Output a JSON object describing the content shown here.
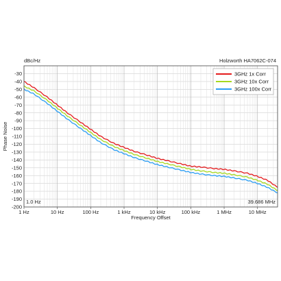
{
  "chart_data": {
    "type": "line",
    "title": "Holzworth HA7062C-074",
    "xlabel": "Frequency Offset",
    "ylabel": "Phase Noise",
    "y_unit": "dBc/Hz",
    "x_scale": "log",
    "xlim": [
      1,
      40000000
    ],
    "ylim": [
      -200,
      -20
    ],
    "x_ticks": [
      {
        "value": 1,
        "label": "1 Hz"
      },
      {
        "value": 10,
        "label": "10 Hz"
      },
      {
        "value": 100,
        "label": "100 Hz"
      },
      {
        "value": 1000,
        "label": "1 kHz"
      },
      {
        "value": 10000,
        "label": "10 kHz"
      },
      {
        "value": 100000,
        "label": "100 kHz"
      },
      {
        "value": 1000000,
        "label": "1 MHz"
      },
      {
        "value": 10000000,
        "label": "10 MHz"
      }
    ],
    "y_ticks": [
      -30,
      -40,
      -50,
      -60,
      -70,
      -80,
      -90,
      -100,
      -110,
      -120,
      -130,
      -140,
      -150,
      -160,
      -170,
      -180,
      -190,
      -200
    ],
    "grid": true,
    "legend_position": "top-right",
    "start_marker": "1.0 Hz",
    "stop_marker": "39.686 MHz",
    "series": [
      {
        "name": "3GHz 1x Corr",
        "color": "#e41a1c",
        "points": [
          [
            1,
            -40
          ],
          [
            2,
            -48
          ],
          [
            5,
            -60
          ],
          [
            10,
            -70
          ],
          [
            20,
            -80
          ],
          [
            50,
            -92
          ],
          [
            100,
            -101
          ],
          [
            200,
            -110
          ],
          [
            500,
            -119
          ],
          [
            1000,
            -124
          ],
          [
            2000,
            -129
          ],
          [
            5000,
            -134
          ],
          [
            10000,
            -138
          ],
          [
            20000,
            -141
          ],
          [
            50000,
            -145
          ],
          [
            100000,
            -148
          ],
          [
            200000,
            -149
          ],
          [
            500000,
            -151
          ],
          [
            1000000,
            -152
          ],
          [
            2000000,
            -154
          ],
          [
            5000000,
            -157
          ],
          [
            10000000,
            -161
          ],
          [
            20000000,
            -166
          ],
          [
            40000000,
            -175
          ]
        ]
      },
      {
        "name": "3GHz 10x Corr",
        "color": "#a6d81e",
        "points": [
          [
            1,
            -46
          ],
          [
            2,
            -52
          ],
          [
            5,
            -64
          ],
          [
            10,
            -74
          ],
          [
            20,
            -84
          ],
          [
            50,
            -96
          ],
          [
            100,
            -105
          ],
          [
            200,
            -114
          ],
          [
            500,
            -123
          ],
          [
            1000,
            -128
          ],
          [
            2000,
            -133
          ],
          [
            5000,
            -138
          ],
          [
            10000,
            -142
          ],
          [
            20000,
            -145
          ],
          [
            50000,
            -149
          ],
          [
            100000,
            -152
          ],
          [
            200000,
            -154
          ],
          [
            500000,
            -156
          ],
          [
            1000000,
            -157
          ],
          [
            2000000,
            -159
          ],
          [
            5000000,
            -162
          ],
          [
            10000000,
            -166
          ],
          [
            20000000,
            -171
          ],
          [
            40000000,
            -179
          ]
        ]
      },
      {
        "name": "3GHz 100x Corr",
        "color": "#2a9df4",
        "points": [
          [
            1,
            -50
          ],
          [
            2,
            -56
          ],
          [
            5,
            -68
          ],
          [
            10,
            -78
          ],
          [
            20,
            -88
          ],
          [
            50,
            -100
          ],
          [
            100,
            -109
          ],
          [
            200,
            -118
          ],
          [
            500,
            -127
          ],
          [
            1000,
            -132
          ],
          [
            2000,
            -137
          ],
          [
            5000,
            -142
          ],
          [
            10000,
            -146
          ],
          [
            20000,
            -149
          ],
          [
            50000,
            -153
          ],
          [
            100000,
            -156
          ],
          [
            200000,
            -158
          ],
          [
            500000,
            -160
          ],
          [
            1000000,
            -161
          ],
          [
            2000000,
            -163
          ],
          [
            5000000,
            -166
          ],
          [
            10000000,
            -170
          ],
          [
            20000000,
            -175
          ],
          [
            40000000,
            -182
          ]
        ]
      }
    ]
  }
}
